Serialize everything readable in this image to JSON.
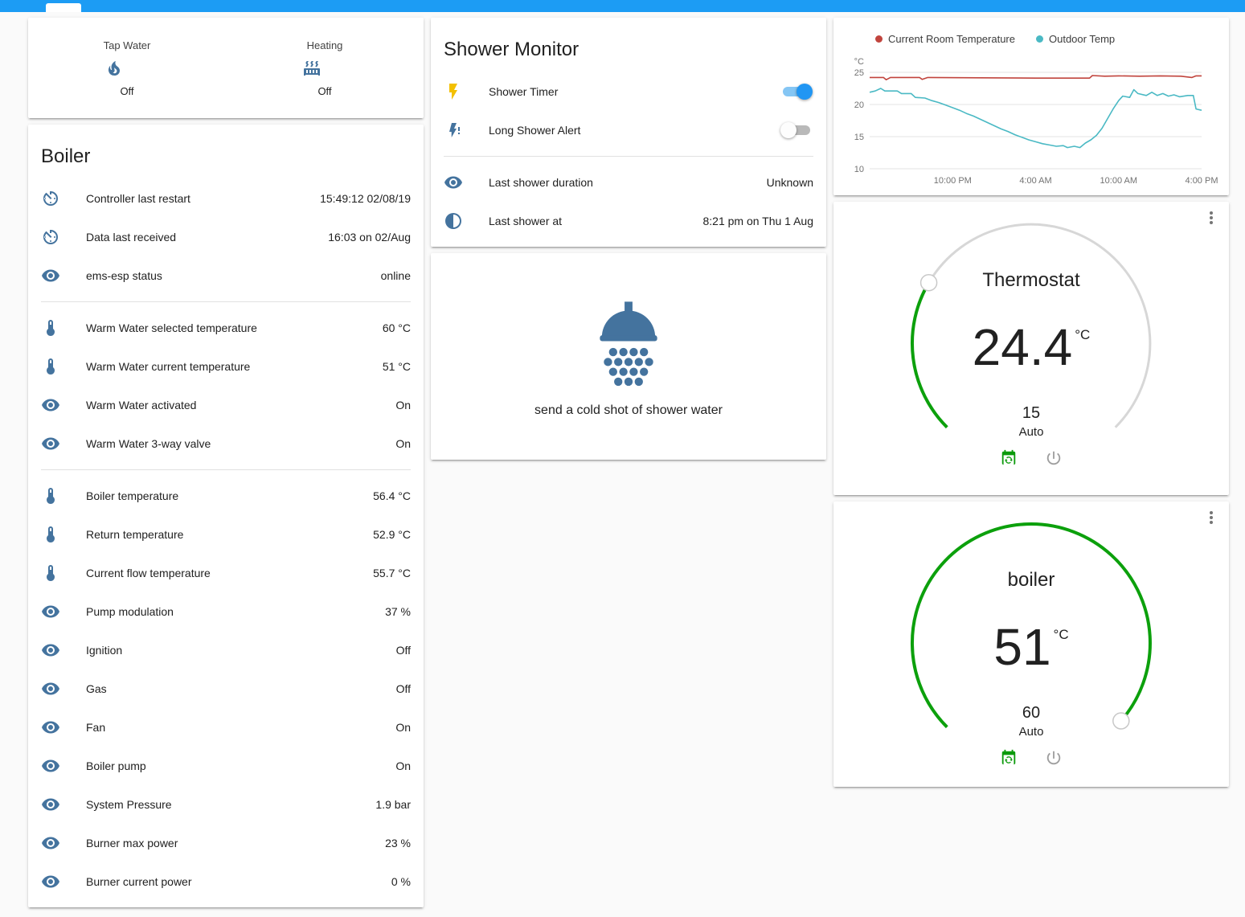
{
  "colors": {
    "header_bar": "#1c9cf4",
    "icon_blue": "#44739e",
    "accent_blue": "#2196f3",
    "gauge_green": "#0ca00c",
    "gauge_track": "#d7d7d7",
    "flash_yellow": "#f3c000"
  },
  "glance": {
    "items": [
      {
        "label": "Tap Water",
        "icon": "fire-icon",
        "state": "Off"
      },
      {
        "label": "Heating",
        "icon": "radiator-icon",
        "state": "Off"
      }
    ]
  },
  "boiler": {
    "title": "Boiler",
    "rows": [
      {
        "icon": "timer-icon",
        "label": "Controller last restart",
        "value": "15:49:12 02/08/19"
      },
      {
        "icon": "timer-icon",
        "label": "Data last received",
        "value": "16:03 on 02/Aug"
      },
      {
        "icon": "eye-icon",
        "label": "ems-esp status",
        "value": "online",
        "divider": true
      },
      {
        "icon": "thermometer-icon",
        "label": "Warm Water selected temperature",
        "value": "60 °C"
      },
      {
        "icon": "thermometer-icon",
        "label": "Warm Water current temperature",
        "value": "51 °C"
      },
      {
        "icon": "eye-icon",
        "label": "Warm Water activated",
        "value": "On"
      },
      {
        "icon": "eye-icon",
        "label": "Warm Water 3-way valve",
        "value": "On",
        "divider": true
      },
      {
        "icon": "thermometer-icon",
        "label": "Boiler temperature",
        "value": "56.4 °C"
      },
      {
        "icon": "thermometer-icon",
        "label": "Return temperature",
        "value": "52.9 °C"
      },
      {
        "icon": "thermometer-icon",
        "label": "Current flow temperature",
        "value": "55.7 °C"
      },
      {
        "icon": "eye-icon",
        "label": "Pump modulation",
        "value": "37 %"
      },
      {
        "icon": "eye-icon",
        "label": "Ignition",
        "value": "Off"
      },
      {
        "icon": "eye-icon",
        "label": "Gas",
        "value": "Off"
      },
      {
        "icon": "eye-icon",
        "label": "Fan",
        "value": "On"
      },
      {
        "icon": "eye-icon",
        "label": "Boiler pump",
        "value": "On"
      },
      {
        "icon": "eye-icon",
        "label": "System Pressure",
        "value": "1.9 bar"
      },
      {
        "icon": "eye-icon",
        "label": "Burner max power",
        "value": "23 %"
      },
      {
        "icon": "eye-icon",
        "label": "Burner current power",
        "value": "0 %"
      }
    ]
  },
  "shower_monitor": {
    "title": "Shower Monitor",
    "toggles": [
      {
        "label": "Shower Timer",
        "icon": "flash-icon",
        "on": true
      },
      {
        "label": "Long Shower Alert",
        "icon": "flash-alert-icon",
        "on": false
      }
    ],
    "rows": [
      {
        "icon": "eye-icon",
        "label": "Last shower duration",
        "value": "Unknown"
      },
      {
        "icon": "moon-icon",
        "label": "Last shower at",
        "value": "8:21 pm on Thu 1 Aug"
      }
    ]
  },
  "shower_action": {
    "icon": "shower-head-icon",
    "label": "send a cold shot of shower water"
  },
  "chart_data": {
    "type": "line",
    "title": "",
    "ylabel": "°C",
    "ylim": [
      10,
      25
    ],
    "yticks": [
      10,
      15,
      20,
      25
    ],
    "xlim": [
      16,
      40
    ],
    "xticks": [
      {
        "t": 22,
        "label": "10:00 PM"
      },
      {
        "t": 28,
        "label": "4:00 AM"
      },
      {
        "t": 34,
        "label": "10:00 AM"
      },
      {
        "t": 40,
        "label": "4:00 PM"
      }
    ],
    "grid": "horizontal",
    "legend_position": "top",
    "series": [
      {
        "name": "Current Room Temperature",
        "color": "#c1443d",
        "points": [
          [
            16,
            24.2
          ],
          [
            17,
            24.2
          ],
          [
            17.2,
            23.85
          ],
          [
            17.5,
            24.2
          ],
          [
            19.6,
            24.2
          ],
          [
            19.8,
            23.9
          ],
          [
            20.2,
            24.2
          ],
          [
            24,
            24.15
          ],
          [
            28,
            24.1
          ],
          [
            31.9,
            24.1
          ],
          [
            32.1,
            24.5
          ],
          [
            33,
            24.4
          ],
          [
            34,
            24.45
          ],
          [
            35.5,
            24.4
          ],
          [
            37,
            24.45
          ],
          [
            38.5,
            24.4
          ],
          [
            39.3,
            24.2
          ],
          [
            39.6,
            24.45
          ],
          [
            40,
            24.45
          ]
        ]
      },
      {
        "name": "Outdoor Temp",
        "color": "#4ab9c4",
        "points": [
          [
            16,
            21.9
          ],
          [
            16.4,
            22.1
          ],
          [
            16.8,
            22.5
          ],
          [
            17.1,
            22.1
          ],
          [
            18,
            22.1
          ],
          [
            18.3,
            21.7
          ],
          [
            19,
            21.7
          ],
          [
            19.3,
            21.1
          ],
          [
            20,
            21.0
          ],
          [
            20.5,
            20.6
          ],
          [
            21,
            20.3
          ],
          [
            21.5,
            19.9
          ],
          [
            22,
            19.5
          ],
          [
            22.5,
            19.1
          ],
          [
            23,
            18.6
          ],
          [
            23.5,
            18.2
          ],
          [
            24,
            17.7
          ],
          [
            24.5,
            17.2
          ],
          [
            25,
            16.7
          ],
          [
            25.5,
            16.2
          ],
          [
            26,
            15.8
          ],
          [
            26.5,
            15.3
          ],
          [
            27,
            14.9
          ],
          [
            27.5,
            14.5
          ],
          [
            28,
            14.2
          ],
          [
            28.5,
            13.9
          ],
          [
            29,
            13.7
          ],
          [
            29.5,
            13.5
          ],
          [
            30,
            13.6
          ],
          [
            30.3,
            13.3
          ],
          [
            30.8,
            13.5
          ],
          [
            31.2,
            13.3
          ],
          [
            31.6,
            14.0
          ],
          [
            32,
            14.5
          ],
          [
            32.4,
            15.2
          ],
          [
            32.8,
            16.3
          ],
          [
            33.2,
            17.8
          ],
          [
            33.6,
            19.3
          ],
          [
            34,
            20.6
          ],
          [
            34.3,
            21.3
          ],
          [
            34.8,
            21.1
          ],
          [
            35.1,
            22.3
          ],
          [
            35.4,
            21.7
          ],
          [
            36,
            21.4
          ],
          [
            36.4,
            21.9
          ],
          [
            36.8,
            21.4
          ],
          [
            37.2,
            21.7
          ],
          [
            37.6,
            21.3
          ],
          [
            38,
            21.5
          ],
          [
            38.4,
            21.2
          ],
          [
            39,
            21.4
          ],
          [
            39.4,
            21.4
          ],
          [
            39.6,
            19.3
          ],
          [
            40,
            19.1
          ]
        ]
      }
    ]
  },
  "thermostat": {
    "title": "Thermostat",
    "temp": "24.4",
    "unit": "°C",
    "setpoint": "15",
    "mode": "Auto",
    "fraction": 0.28
  },
  "boiler_gauge": {
    "title": "boiler",
    "temp": "51",
    "unit": "°C",
    "setpoint": "60",
    "mode": "Auto",
    "fraction": 0.985
  }
}
